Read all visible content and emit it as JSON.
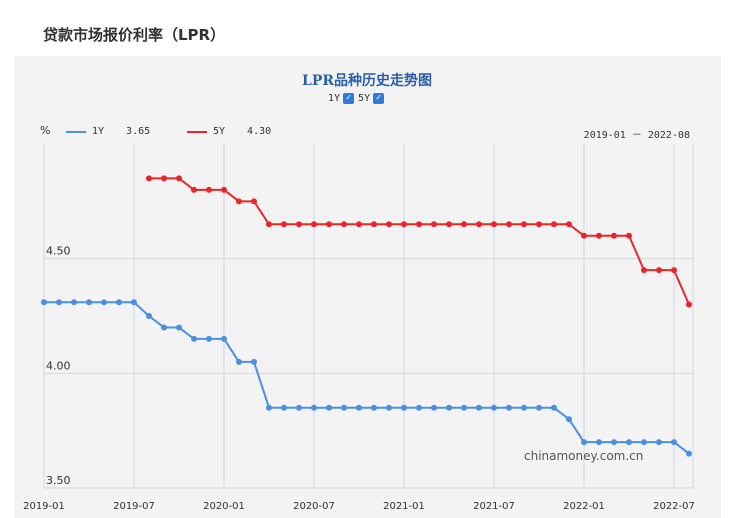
{
  "page": {
    "title": "贷款市场报价利率（LPR）"
  },
  "chart": {
    "title": "LPR品种历史走势图",
    "toggles": [
      {
        "label": "1Y",
        "checked": true
      },
      {
        "label": "5Y",
        "checked": true
      }
    ],
    "unit": "%",
    "legend": [
      {
        "name": "1Y",
        "value": "3.65",
        "color": "#4a90e2"
      },
      {
        "name": "5Y",
        "value": "4.30",
        "color": "#e8262a"
      }
    ],
    "range_text": "2019-01 － 2022-08",
    "watermark": "chinamoney.com.cn"
  },
  "chart_data": {
    "type": "line",
    "xlabel": "",
    "ylabel": "%",
    "ylim": [
      3.5,
      5.0
    ],
    "y_ticks": [
      "3.50",
      "4.00",
      "4.50"
    ],
    "x_ticks": [
      "2019-01",
      "2019-07",
      "2020-01",
      "2020-07",
      "2021-01",
      "2021-07",
      "2022-01",
      "2022-07"
    ],
    "x_tick_index": [
      0,
      6,
      12,
      18,
      24,
      30,
      36,
      42
    ],
    "series": [
      {
        "name": "1Y",
        "color": "#4a90e2",
        "start_index": 0,
        "values": [
          4.31,
          4.31,
          4.31,
          4.31,
          4.31,
          4.31,
          4.31,
          4.25,
          4.2,
          4.2,
          4.15,
          4.15,
          4.15,
          4.05,
          4.05,
          3.85,
          3.85,
          3.85,
          3.85,
          3.85,
          3.85,
          3.85,
          3.85,
          3.85,
          3.85,
          3.85,
          3.85,
          3.85,
          3.85,
          3.85,
          3.85,
          3.85,
          3.85,
          3.85,
          3.85,
          3.8,
          3.7,
          3.7,
          3.7,
          3.7,
          3.7,
          3.7,
          3.7,
          3.65
        ]
      },
      {
        "name": "5Y",
        "color": "#e8262a",
        "start_index": 7,
        "values": [
          4.85,
          4.85,
          4.85,
          4.8,
          4.8,
          4.8,
          4.75,
          4.75,
          4.65,
          4.65,
          4.65,
          4.65,
          4.65,
          4.65,
          4.65,
          4.65,
          4.65,
          4.65,
          4.65,
          4.65,
          4.65,
          4.65,
          4.65,
          4.65,
          4.65,
          4.65,
          4.65,
          4.65,
          4.65,
          4.6,
          4.6,
          4.6,
          4.6,
          4.45,
          4.45,
          4.45,
          4.3
        ]
      }
    ]
  }
}
